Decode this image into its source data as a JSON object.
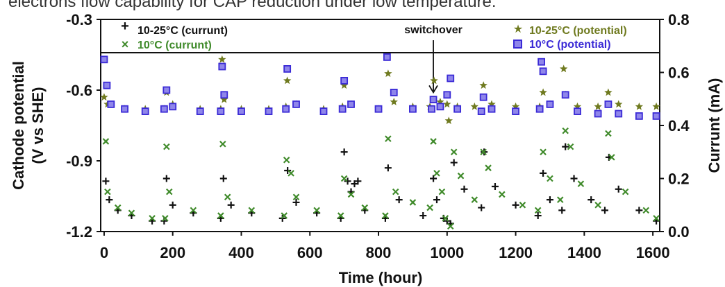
{
  "caption_partial": "electrons flow capability for CAP reduction under low temperature.",
  "chart_data": {
    "type": "scatter",
    "xlabel": "Time (hour)",
    "ylabel_left_line1": "Cathode potential",
    "ylabel_left_line2": "(V vs SHE)",
    "ylabel_right": "Currunt (mA)",
    "xlim": [
      -10,
      1620
    ],
    "ylim_left": [
      -1.2,
      -0.3
    ],
    "ylim_right": [
      0.0,
      0.8
    ],
    "x_ticks": [
      0,
      200,
      400,
      600,
      800,
      1000,
      1200,
      1400,
      1600
    ],
    "y_ticks_left": [
      "-0.3",
      "-0.6",
      "-0.9",
      "-1.2"
    ],
    "y_ticks_left_values": [
      -0.3,
      -0.6,
      -0.9,
      -1.2
    ],
    "y_ticks_right": [
      "0.8",
      "0.6",
      "0.4",
      "0.2",
      "0.0"
    ],
    "y_ticks_right_values": [
      0.8,
      0.6,
      0.4,
      0.2,
      0.0
    ],
    "legend_position": "top, inside plot",
    "annotation": {
      "text": "switchover",
      "x": 960,
      "y_arrow_tip": -0.61
    },
    "series": [
      {
        "name": "10-25°C (currunt)",
        "axis": "right",
        "marker": "plus",
        "color": "#111111",
        "points": [
          [
            5,
            0.19
          ],
          [
            15,
            0.12
          ],
          [
            40,
            0.08
          ],
          [
            80,
            0.06
          ],
          [
            140,
            0.04
          ],
          [
            175,
            0.04
          ],
          [
            182,
            0.2
          ],
          [
            200,
            0.1
          ],
          [
            260,
            0.07
          ],
          [
            340,
            0.05
          ],
          [
            348,
            0.2
          ],
          [
            370,
            0.1
          ],
          [
            430,
            0.07
          ],
          [
            520,
            0.05
          ],
          [
            535,
            0.23
          ],
          [
            560,
            0.11
          ],
          [
            620,
            0.07
          ],
          [
            690,
            0.05
          ],
          [
            700,
            0.3
          ],
          [
            710,
            0.19
          ],
          [
            720,
            0.15
          ],
          [
            730,
            0.18
          ],
          [
            740,
            0.19
          ],
          [
            760,
            0.08
          ],
          [
            820,
            0.05
          ],
          [
            828,
            0.24
          ],
          [
            860,
            0.12
          ],
          [
            930,
            0.06
          ],
          [
            960,
            0.2
          ],
          [
            970,
            0.12
          ],
          [
            990,
            0.05
          ],
          [
            1000,
            0.04
          ],
          [
            1010,
            0.03
          ],
          [
            1020,
            0.26
          ],
          [
            1050,
            0.16
          ],
          [
            1100,
            0.09
          ],
          [
            1108,
            0.3
          ],
          [
            1140,
            0.17
          ],
          [
            1200,
            0.1
          ],
          [
            1265,
            0.06
          ],
          [
            1280,
            0.22
          ],
          [
            1300,
            0.12
          ],
          [
            1335,
            0.08
          ],
          [
            1345,
            0.32
          ],
          [
            1370,
            0.2
          ],
          [
            1420,
            0.12
          ],
          [
            1460,
            0.08
          ],
          [
            1472,
            0.28
          ],
          [
            1500,
            0.16
          ],
          [
            1560,
            0.08
          ],
          [
            1610,
            0.04
          ]
        ]
      },
      {
        "name": "10°C (currunt)",
        "axis": "right",
        "marker": "x",
        "color": "#3f8a2a",
        "points": [
          [
            5,
            0.34
          ],
          [
            10,
            0.15
          ],
          [
            40,
            0.09
          ],
          [
            80,
            0.07
          ],
          [
            140,
            0.05
          ],
          [
            178,
            0.05
          ],
          [
            182,
            0.32
          ],
          [
            190,
            0.15
          ],
          [
            260,
            0.08
          ],
          [
            340,
            0.06
          ],
          [
            346,
            0.33
          ],
          [
            360,
            0.13
          ],
          [
            430,
            0.08
          ],
          [
            525,
            0.06
          ],
          [
            532,
            0.27
          ],
          [
            545,
            0.22
          ],
          [
            560,
            0.13
          ],
          [
            620,
            0.08
          ],
          [
            690,
            0.06
          ],
          [
            700,
            0.2
          ],
          [
            720,
            0.14
          ],
          [
            760,
            0.09
          ],
          [
            820,
            0.06
          ],
          [
            828,
            0.35
          ],
          [
            850,
            0.15
          ],
          [
            900,
            0.11
          ],
          [
            950,
            0.09
          ],
          [
            960,
            0.34
          ],
          [
            970,
            0.22
          ],
          [
            985,
            0.15
          ],
          [
            995,
            0.05
          ],
          [
            1010,
            0.02
          ],
          [
            1020,
            0.3
          ],
          [
            1040,
            0.21
          ],
          [
            1080,
            0.12
          ],
          [
            1106,
            0.3
          ],
          [
            1120,
            0.24
          ],
          [
            1160,
            0.14
          ],
          [
            1220,
            0.1
          ],
          [
            1265,
            0.08
          ],
          [
            1280,
            0.3
          ],
          [
            1300,
            0.2
          ],
          [
            1330,
            0.12
          ],
          [
            1345,
            0.38
          ],
          [
            1360,
            0.32
          ],
          [
            1390,
            0.18
          ],
          [
            1440,
            0.1
          ],
          [
            1470,
            0.37
          ],
          [
            1480,
            0.28
          ],
          [
            1520,
            0.15
          ],
          [
            1580,
            0.08
          ],
          [
            1610,
            0.05
          ]
        ]
      },
      {
        "name": "10-25°C (potential)",
        "axis": "left",
        "marker": "star",
        "color": "#6f7a1f",
        "points": [
          [
            0,
            -0.63
          ],
          [
            10,
            -0.66
          ],
          [
            60,
            -0.68
          ],
          [
            120,
            -0.68
          ],
          [
            175,
            -0.68
          ],
          [
            182,
            -0.61
          ],
          [
            200,
            -0.66
          ],
          [
            280,
            -0.68
          ],
          [
            340,
            -0.68
          ],
          [
            344,
            -0.47
          ],
          [
            350,
            -0.64
          ],
          [
            400,
            -0.68
          ],
          [
            480,
            -0.68
          ],
          [
            530,
            -0.67
          ],
          [
            534,
            -0.56
          ],
          [
            560,
            -0.66
          ],
          [
            640,
            -0.68
          ],
          [
            695,
            -0.67
          ],
          [
            700,
            -0.58
          ],
          [
            720,
            -0.66
          ],
          [
            800,
            -0.68
          ],
          [
            828,
            -0.53
          ],
          [
            845,
            -0.65
          ],
          [
            900,
            -0.67
          ],
          [
            950,
            -0.67
          ],
          [
            962,
            -0.56
          ],
          [
            980,
            -0.65
          ],
          [
            1000,
            -0.66
          ],
          [
            1005,
            -0.73
          ],
          [
            1030,
            -0.67
          ],
          [
            1080,
            -0.67
          ],
          [
            1106,
            -0.58
          ],
          [
            1130,
            -0.66
          ],
          [
            1200,
            -0.67
          ],
          [
            1270,
            -0.67
          ],
          [
            1280,
            -0.61
          ],
          [
            1300,
            -0.66
          ],
          [
            1340,
            -0.51
          ],
          [
            1345,
            -0.62
          ],
          [
            1380,
            -0.67
          ],
          [
            1440,
            -0.67
          ],
          [
            1470,
            -0.61
          ],
          [
            1500,
            -0.66
          ],
          [
            1560,
            -0.67
          ],
          [
            1610,
            -0.67
          ]
        ]
      },
      {
        "name": "10°C (potential)",
        "axis": "left",
        "marker": "boxed",
        "color": "#3a2ad6",
        "points": [
          [
            0,
            -0.47
          ],
          [
            8,
            -0.58
          ],
          [
            20,
            -0.66
          ],
          [
            60,
            -0.68
          ],
          [
            120,
            -0.69
          ],
          [
            175,
            -0.68
          ],
          [
            182,
            -0.6
          ],
          [
            200,
            -0.67
          ],
          [
            280,
            -0.69
          ],
          [
            340,
            -0.69
          ],
          [
            344,
            -0.5
          ],
          [
            350,
            -0.62
          ],
          [
            400,
            -0.69
          ],
          [
            480,
            -0.69
          ],
          [
            530,
            -0.68
          ],
          [
            534,
            -0.51
          ],
          [
            560,
            -0.66
          ],
          [
            640,
            -0.69
          ],
          [
            695,
            -0.68
          ],
          [
            700,
            -0.56
          ],
          [
            720,
            -0.66
          ],
          [
            800,
            -0.68
          ],
          [
            825,
            -0.46
          ],
          [
            845,
            -0.61
          ],
          [
            900,
            -0.68
          ],
          [
            955,
            -0.68
          ],
          [
            960,
            -0.64
          ],
          [
            980,
            -0.67
          ],
          [
            1000,
            -0.62
          ],
          [
            1010,
            -0.55
          ],
          [
            1030,
            -0.68
          ],
          [
            1100,
            -0.69
          ],
          [
            1106,
            -0.63
          ],
          [
            1130,
            -0.68
          ],
          [
            1200,
            -0.69
          ],
          [
            1270,
            -0.68
          ],
          [
            1275,
            -0.48
          ],
          [
            1280,
            -0.52
          ],
          [
            1300,
            -0.66
          ],
          [
            1345,
            -0.62
          ],
          [
            1380,
            -0.69
          ],
          [
            1440,
            -0.7
          ],
          [
            1470,
            -0.66
          ],
          [
            1500,
            -0.7
          ],
          [
            1560,
            -0.71
          ],
          [
            1610,
            -0.71
          ]
        ]
      }
    ]
  }
}
